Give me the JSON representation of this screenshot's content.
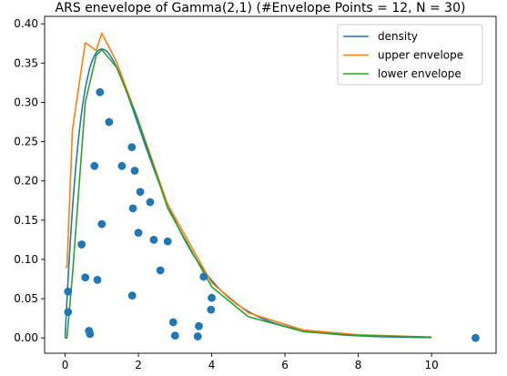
{
  "chart_data": {
    "type": "line",
    "title": "ARS enevelope of Gamma(2,1) (#Envelope Points = 12, N = 30)",
    "xlabel": "",
    "ylabel": "",
    "xlim": [
      -0.56,
      11.76
    ],
    "ylim": [
      -0.0195,
      0.4095
    ],
    "xticks": [
      0,
      2,
      4,
      6,
      8,
      10
    ],
    "yticks": [
      0.0,
      0.05,
      0.1,
      0.15,
      0.2,
      0.25,
      0.3,
      0.35,
      0.4
    ],
    "ytick_labels": [
      "0.00",
      "0.05",
      "0.10",
      "0.15",
      "0.20",
      "0.25",
      "0.30",
      "0.35",
      "0.40"
    ],
    "grid": false,
    "legend_position": "top-right",
    "series": [
      {
        "name": "density",
        "kind": "line",
        "color": "#1f77b4",
        "function": "gamma_2_1",
        "x_range": [
          0,
          10
        ]
      },
      {
        "name": "upper envelope",
        "kind": "line",
        "color": "#ff7f0e",
        "x": [
          0.0,
          0.05,
          0.2,
          0.55,
          0.85,
          1.0,
          1.4,
          1.95,
          2.8,
          4.0,
          5.0,
          6.5,
          8.0,
          10.0
        ],
        "y": [
          0.09,
          0.09,
          0.265,
          0.376,
          0.366,
          0.388,
          0.352,
          0.283,
          0.17,
          0.07,
          0.032,
          0.01,
          0.004,
          0.001
        ]
      },
      {
        "name": "lower envelope",
        "kind": "line",
        "color": "#2ca02c",
        "x": [
          0.0,
          0.05,
          0.2,
          0.55,
          0.85,
          1.0,
          1.4,
          1.95,
          2.8,
          4.0,
          5.0,
          6.5,
          8.0,
          10.0
        ],
        "y": [
          0.0,
          0.0,
          0.08,
          0.3,
          0.36,
          0.367,
          0.345,
          0.283,
          0.165,
          0.065,
          0.027,
          0.008,
          0.003,
          0.001
        ]
      },
      {
        "name": "samples",
        "kind": "scatter",
        "color": "#1f77b4",
        "x": [
          0.08,
          0.08,
          0.45,
          0.55,
          0.65,
          0.68,
          0.8,
          0.88,
          0.95,
          1.0,
          1.2,
          1.55,
          1.82,
          1.83,
          1.85,
          1.9,
          2.0,
          2.05,
          2.32,
          2.42,
          2.6,
          2.8,
          2.95,
          3.0,
          3.62,
          3.65,
          3.78,
          3.98,
          4.0,
          11.2
        ],
        "y": [
          0.059,
          0.033,
          0.119,
          0.077,
          0.009,
          0.005,
          0.219,
          0.074,
          0.313,
          0.145,
          0.275,
          0.219,
          0.243,
          0.054,
          0.165,
          0.213,
          0.134,
          0.186,
          0.173,
          0.125,
          0.086,
          0.123,
          0.02,
          0.003,
          0.002,
          0.015,
          0.078,
          0.036,
          0.051,
          0.0
        ]
      }
    ],
    "legend": [
      {
        "label": "density",
        "color": "#1f77b4"
      },
      {
        "label": "upper envelope",
        "color": "#ff7f0e"
      },
      {
        "label": "lower envelope",
        "color": "#2ca02c"
      }
    ]
  }
}
